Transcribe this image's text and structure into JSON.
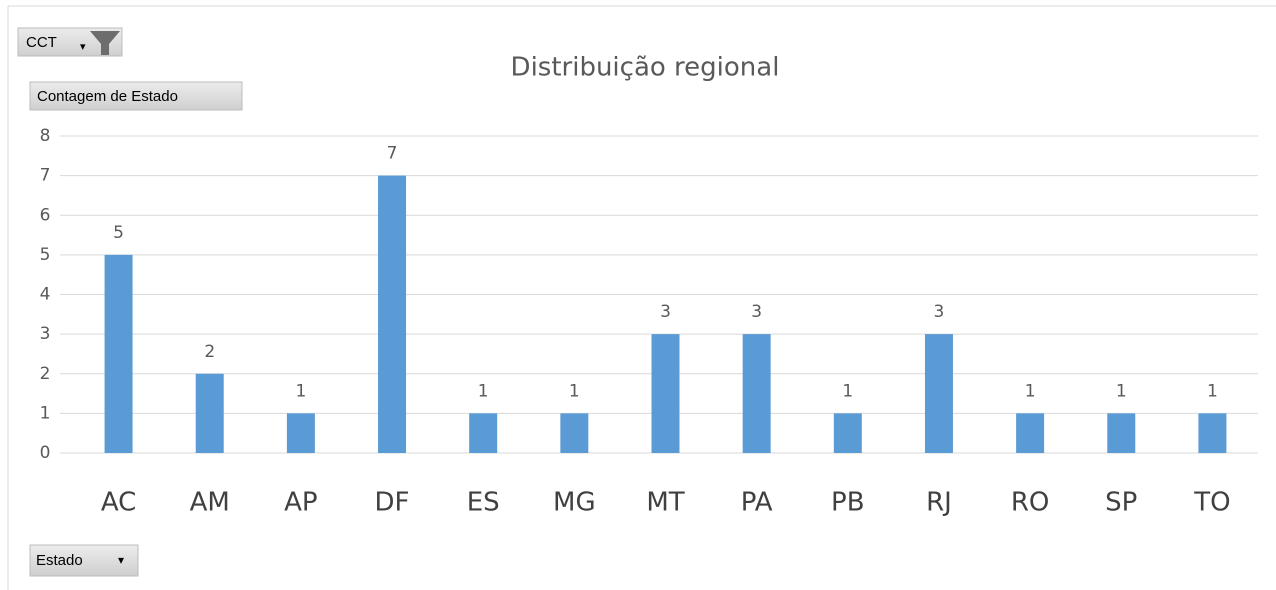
{
  "chart_data": {
    "type": "bar",
    "title": "Distribuição regional",
    "categories": [
      "AC",
      "AM",
      "AP",
      "DF",
      "ES",
      "MG",
      "MT",
      "PA",
      "PB",
      "RJ",
      "RO",
      "SP",
      "TO"
    ],
    "values": [
      5,
      2,
      1,
      7,
      1,
      1,
      3,
      3,
      1,
      3,
      1,
      1,
      1
    ],
    "color": "#5b9bd5",
    "ylim": [
      0,
      8
    ],
    "yticks": [
      0,
      1,
      2,
      3,
      4,
      5,
      6,
      7,
      8
    ],
    "grid": true,
    "data_labels": true,
    "field_buttons": {
      "filter": "CCT",
      "values": "Contagem de Estado",
      "axis": "Estado"
    }
  }
}
